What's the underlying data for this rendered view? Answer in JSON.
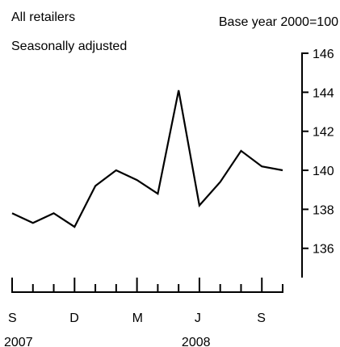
{
  "chart_data": {
    "type": "line",
    "notes": {
      "top_left_line1": "All retailers",
      "top_left_line2": "Seasonally adjusted",
      "top_right": "Base year 2000=100"
    },
    "x": [
      "2007-09",
      "2007-10",
      "2007-11",
      "2007-12",
      "2008-01",
      "2008-02",
      "2008-03",
      "2008-04",
      "2008-05",
      "2008-06",
      "2008-07",
      "2008-08",
      "2008-09",
      "2008-10"
    ],
    "series": [
      {
        "values": [
          137.8,
          137.3,
          137.8,
          137.1,
          139.2,
          140.0,
          139.5,
          138.8,
          144.1,
          138.2,
          139.4,
          141.0,
          140.2,
          140.0
        ]
      }
    ],
    "ylim": [
      134.5,
      146
    ],
    "y_ticks": [
      136,
      138,
      140,
      142,
      144,
      146
    ],
    "x_tick_labels": [
      {
        "index": 0,
        "month": "S",
        "year": "2007"
      },
      {
        "index": 3,
        "month": "D",
        "year": ""
      },
      {
        "index": 6,
        "month": "M",
        "year": ""
      },
      {
        "index": 9,
        "month": "J",
        "year": "2008"
      },
      {
        "index": 12,
        "month": "S",
        "year": ""
      }
    ],
    "y_axis_position": "right",
    "grid": false,
    "legend": "none",
    "colors": {
      "line": "#000000",
      "axis": "#000000",
      "background": "#ffffff"
    }
  }
}
